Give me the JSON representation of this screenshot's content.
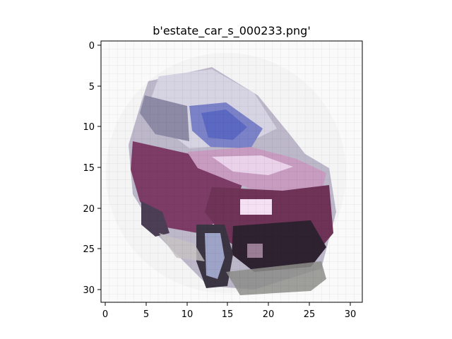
{
  "figure": {
    "title": "b'estate_car_s_000233.png'",
    "x_ticks": [
      "0",
      "5",
      "10",
      "15",
      "20",
      "25",
      "30"
    ],
    "y_ticks": [
      "0",
      "5",
      "10",
      "15",
      "20",
      "25",
      "30"
    ],
    "image_grid": [
      32,
      32
    ],
    "image_subject": "pixelated purple/maroon estate car on white background",
    "colors": {
      "background": "#fafafa",
      "car_body": "#7a3a63",
      "car_dark": "#2e1f2c",
      "window_blue": "#6f78c6",
      "window_light": "#d9dcf0",
      "shadow_gray": "#8d8d8a",
      "highlight_pink": "#f2d7ef"
    }
  }
}
